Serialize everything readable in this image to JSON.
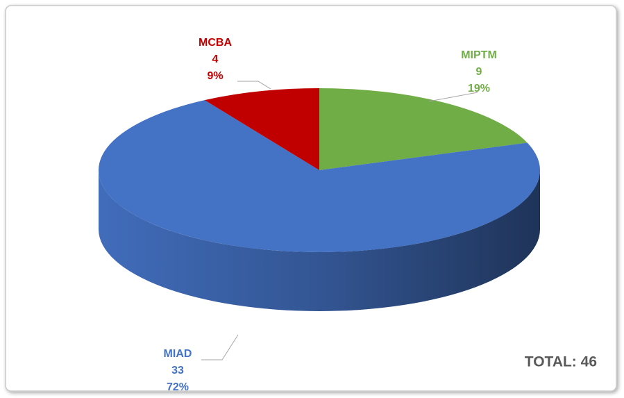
{
  "chart_data": {
    "type": "pie",
    "style": "3d",
    "categories": [
      "MIPTM",
      "MIAD",
      "MCBA"
    ],
    "values": [
      9,
      33,
      4
    ],
    "percent_labels": [
      "19%",
      "72%",
      "9%"
    ],
    "colors": [
      "#70ad47",
      "#4472c4",
      "#c00000"
    ],
    "annotation": "TOTAL: 46"
  }
}
